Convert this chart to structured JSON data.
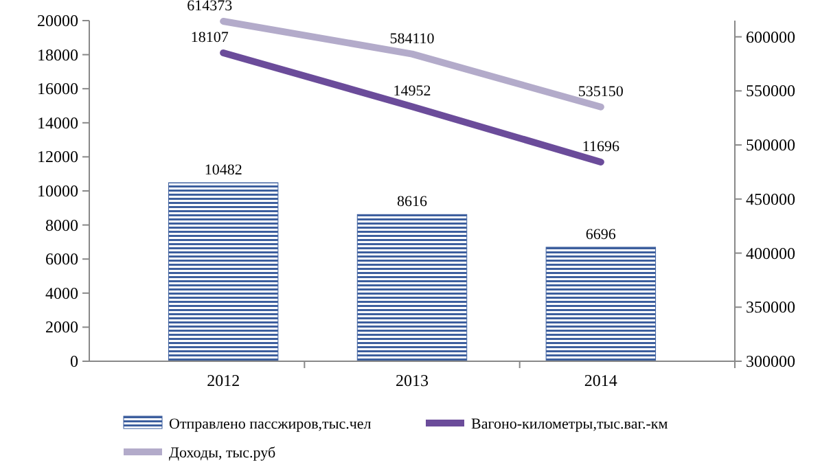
{
  "chart_data": {
    "type": "bar",
    "categories": [
      "2012",
      "2013",
      "2014"
    ],
    "series": [
      {
        "name": "Отправлено пассжиров,тыс.чел",
        "color": "#3d5f9e",
        "values": [
          10482,
          8616,
          6696
        ]
      },
      {
        "name": "Вагоно-километры,тыс.ваг.-км",
        "type": "line",
        "color": "#6b4c9a",
        "values": [
          18107,
          14952,
          11696
        ]
      },
      {
        "name": "Доходы, тыс.руб",
        "type": "line",
        "axis": "y2",
        "color": "#b3abca",
        "values": [
          614373,
          584110,
          535150
        ]
      }
    ],
    "ylim": [
      0,
      20000
    ],
    "yticks": [
      0,
      2000,
      4000,
      6000,
      8000,
      10000,
      12000,
      14000,
      16000,
      18000,
      20000
    ],
    "y2lim": [
      300000,
      615000
    ],
    "y2ticks": [
      300000,
      350000,
      400000,
      450000,
      500000,
      550000,
      600000
    ],
    "data_labels": true,
    "legend": "bottom",
    "grid": false
  }
}
